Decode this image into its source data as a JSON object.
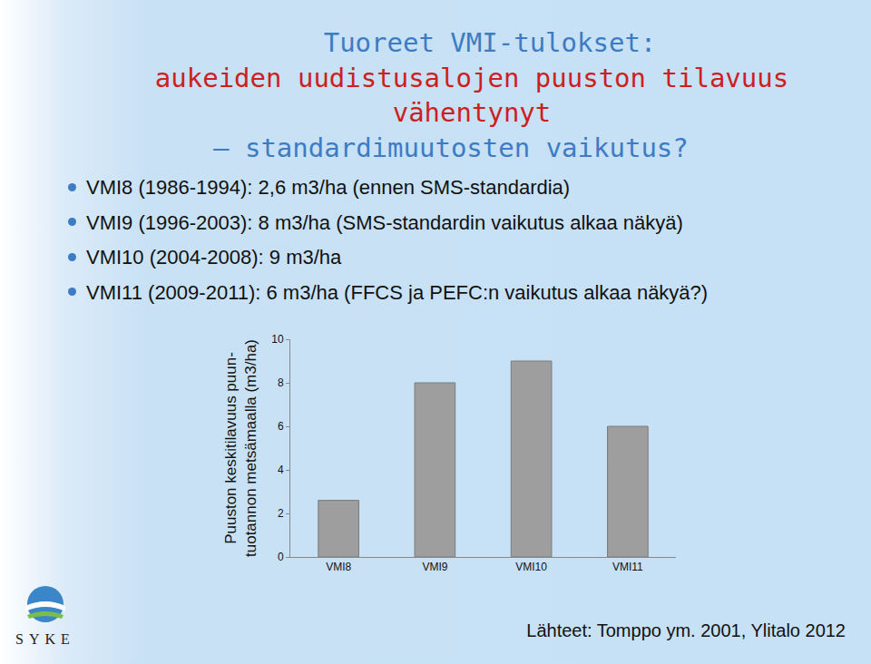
{
  "slide": {
    "heading": [
      "Tuoreet VMI-tulokset:",
      "aukeiden uudistusalojen puuston tilavuus",
      "vähentynyt",
      "– standardimuutosten vaikutus?"
    ],
    "bullets": [
      "VMI8 (1986-1994): 2,6 m3/ha (ennen SMS-standardia)",
      "VMI9 (1996-2003): 8 m3/ha (SMS-standardin vaikutus alkaa näkyä)",
      "VMI10 (2004-2008): 9 m3/ha",
      "VMI11 (2009-2011): 6 m3/ha (FFCS ja PEFC:n vaikutus alkaa näkyä?)"
    ],
    "source": "Lähteet: Tomppo ym. 2001, Ylitalo 2012",
    "logo": "SYKE"
  },
  "chart_data": {
    "type": "bar",
    "ylabel": "Puuston keskitilavuus puun-\ntuotannon metsämaalla (m3/ha)",
    "categories": [
      "VMI8",
      "VMI9",
      "VMI10",
      "VMI11"
    ],
    "values": [
      2.6,
      8,
      9,
      6
    ],
    "color": "#9e9e9e",
    "ylim": [
      0,
      10
    ],
    "yticks": [
      0,
      2,
      4,
      6,
      8,
      10
    ],
    "grid": false
  }
}
